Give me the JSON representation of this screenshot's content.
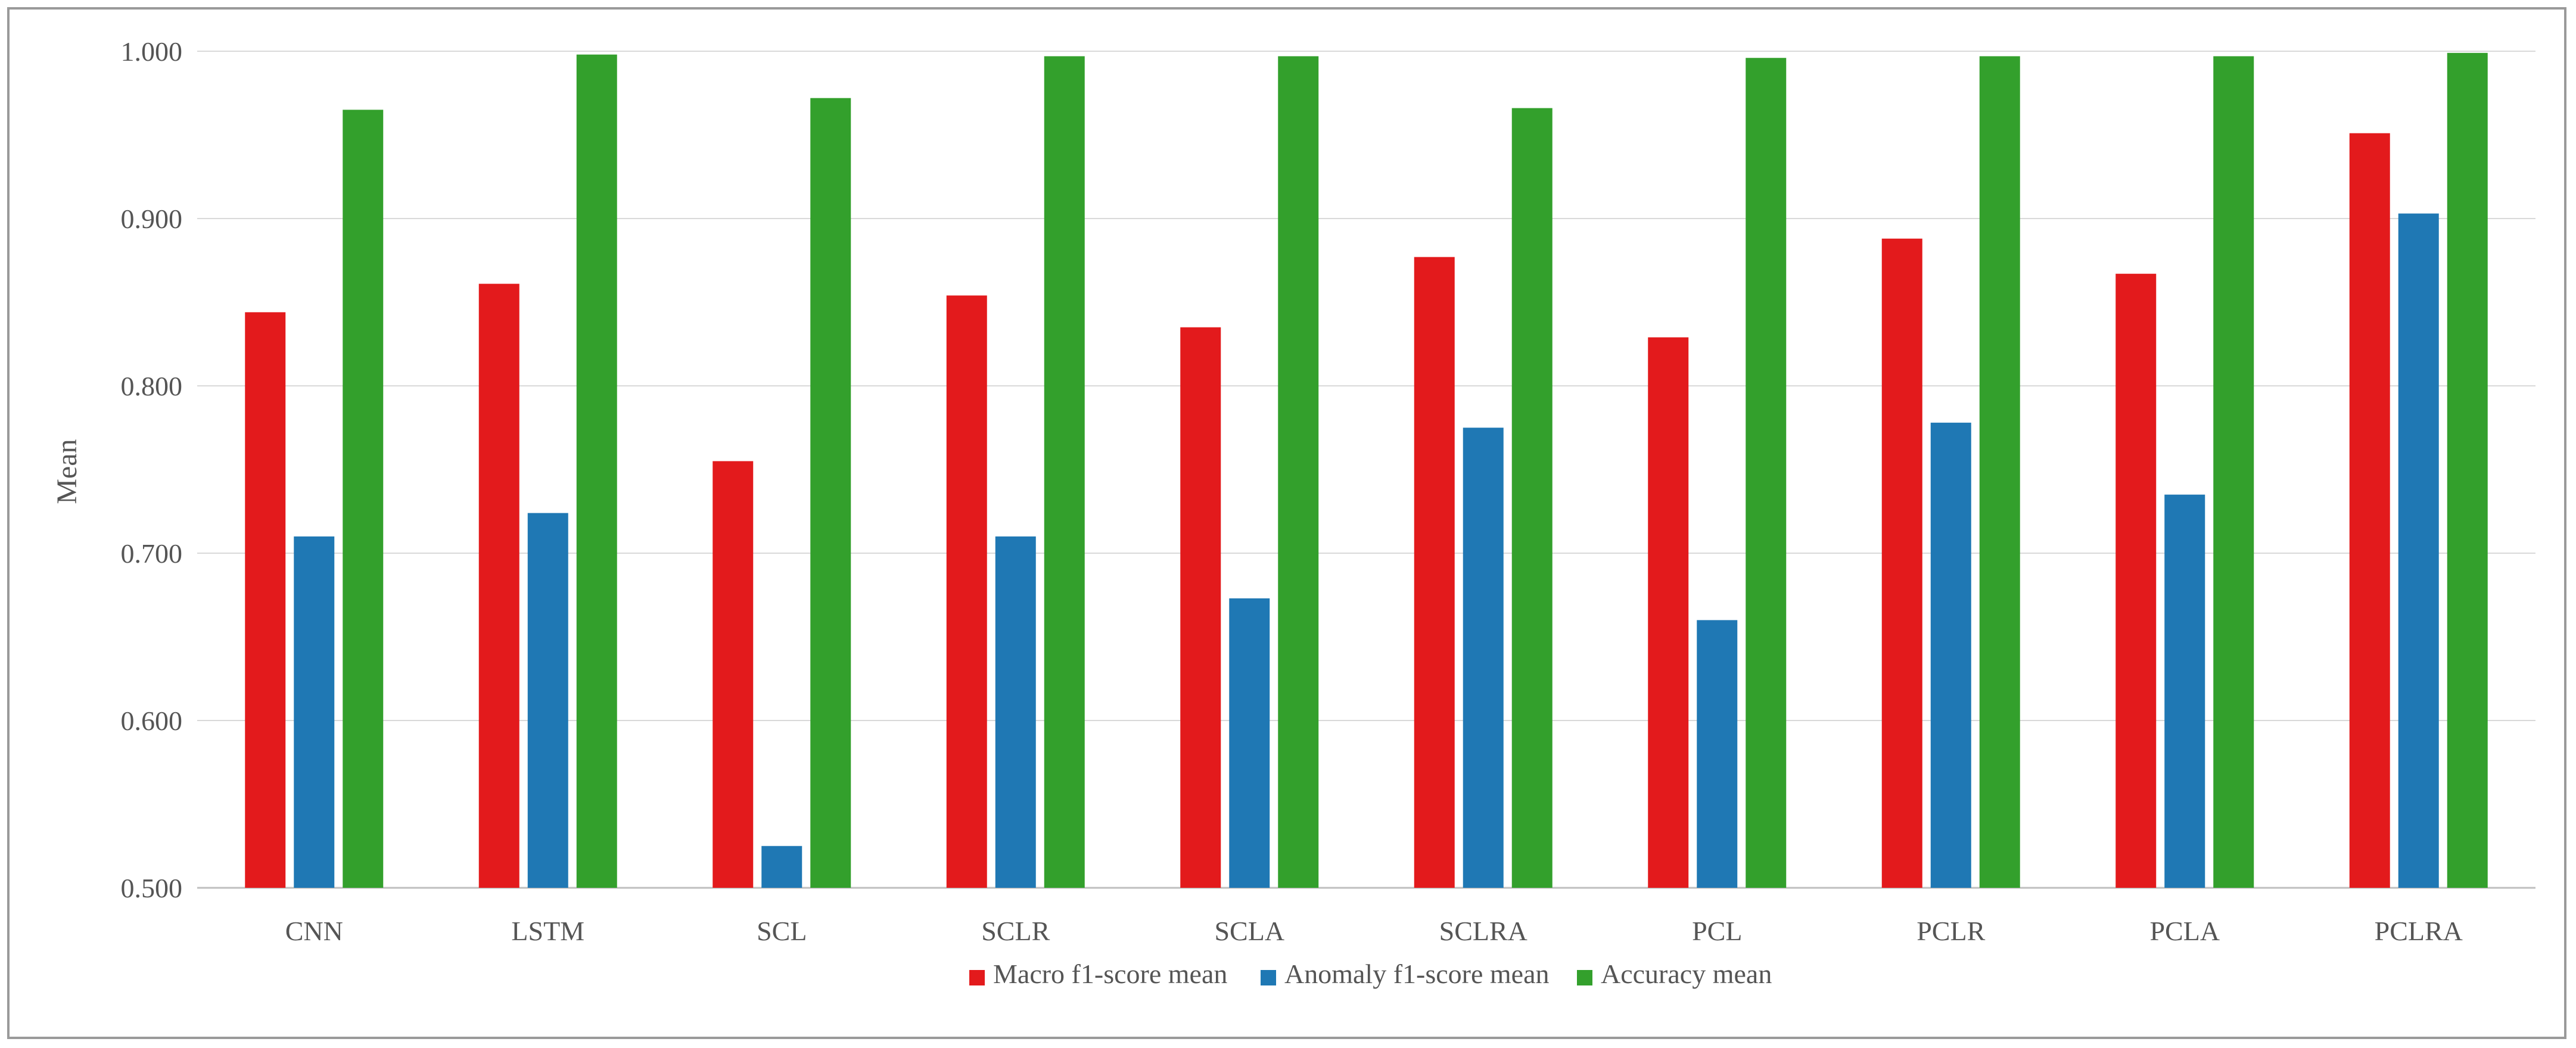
{
  "chart_data": {
    "type": "bar",
    "title": "",
    "xlabel": "",
    "ylabel": "Mean",
    "ylim": [
      0.5,
      1.0
    ],
    "y_ticks": [
      "0.500",
      "0.600",
      "0.700",
      "0.800",
      "0.900",
      "1.000"
    ],
    "grid": true,
    "legend_position": "bottom",
    "categories": [
      "CNN",
      "LSTM",
      "SCL",
      "SCLR",
      "SCLA",
      "SCLRA",
      "PCL",
      "PCLR",
      "PCLA",
      "PCLRA"
    ],
    "series": [
      {
        "name": "Macro f1-score mean",
        "color": "#e31a1c",
        "values": [
          0.844,
          0.861,
          0.755,
          0.854,
          0.835,
          0.877,
          0.829,
          0.888,
          0.867,
          0.951
        ]
      },
      {
        "name": "Anomaly f1-score mean",
        "color": "#1f78b4",
        "values": [
          0.71,
          0.724,
          0.525,
          0.71,
          0.673,
          0.775,
          0.66,
          0.778,
          0.735,
          0.903
        ]
      },
      {
        "name": "Accuracy mean",
        "color": "#33a02c",
        "values": [
          0.965,
          0.998,
          0.972,
          0.997,
          0.997,
          0.966,
          0.996,
          0.997,
          0.997,
          0.999
        ]
      }
    ]
  }
}
